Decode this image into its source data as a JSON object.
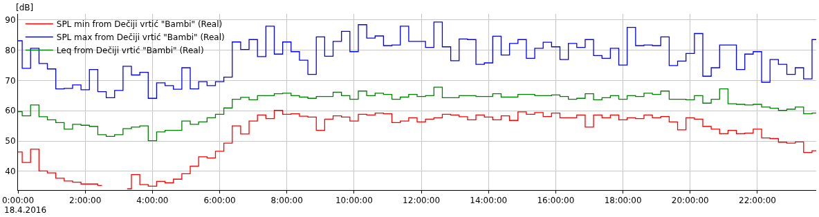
{
  "chart_data": {
    "type": "step",
    "ylabel": "[dB]",
    "annotations": [
      "18.4.2016"
    ],
    "x": [
      0,
      0.25,
      0.5,
      0.75,
      1,
      1.25,
      1.5,
      1.75,
      2,
      2.25,
      2.5,
      2.75,
      3,
      3.25,
      3.5,
      3.75,
      4,
      4.25,
      4.5,
      4.75,
      5,
      5.25,
      5.5,
      5.75,
      6,
      6.25,
      6.5,
      6.75,
      7,
      7.25,
      7.5,
      7.75,
      8,
      8.25,
      8.5,
      8.75,
      9,
      9.25,
      9.5,
      9.75,
      10,
      10.25,
      10.5,
      10.75,
      11,
      11.25,
      11.5,
      11.75,
      12,
      12.25,
      12.5,
      12.75,
      13,
      13.25,
      13.5,
      13.75,
      14,
      14.25,
      14.5,
      14.75,
      15,
      15.25,
      15.5,
      15.75,
      16,
      16.25,
      16.5,
      16.75,
      17,
      17.25,
      17.5,
      17.75,
      18,
      18.25,
      18.5,
      18.75,
      19,
      19.25,
      19.5,
      19.75,
      20,
      20.25,
      20.5,
      20.75,
      21,
      21.25,
      21.5,
      21.75,
      22,
      22.25,
      22.5,
      22.75,
      23,
      23.25,
      23.5,
      23.75
    ],
    "series": [
      {
        "name": "SPL min from Dečiji vrtić \"Bambi\" (Real)",
        "color": "#ff0000",
        "values": [
          46.4,
          42.9,
          47.3,
          40.1,
          39.5,
          37.7,
          36.8,
          36.4,
          35.8,
          35.8,
          35.3,
          null,
          null,
          34.2,
          38.9,
          35.6,
          35.1,
          36.7,
          36.2,
          37.4,
          39.2,
          41.7,
          44.8,
          44.4,
          46.6,
          49.3,
          55.0,
          52.3,
          56.6,
          58.6,
          57.4,
          60.1,
          58.8,
          59.0,
          58.2,
          57.9,
          53.5,
          57.2,
          58.3,
          57.9,
          56.6,
          58.8,
          58.6,
          59.2,
          59.0,
          56.1,
          56.6,
          57.7,
          56.3,
          57.2,
          57.7,
          58.8,
          58.6,
          58.0,
          57.0,
          58.6,
          57.9,
          57.0,
          58.3,
          56.8,
          59.6,
          58.8,
          59.4,
          58.1,
          59.2,
          57.7,
          57.7,
          58.6,
          54.6,
          58.6,
          57.7,
          58.6,
          57.0,
          57.7,
          57.4,
          58.6,
          57.7,
          58.1,
          56.3,
          53.7,
          57.7,
          57.2,
          54.8,
          53.9,
          52.4,
          53.5,
          52.4,
          52.6,
          53.9,
          51.0,
          50.8,
          49.6,
          49.3,
          49.7,
          46.2,
          46.8
        ]
      },
      {
        "name": "SPL max from Dečiji vrtić \"Bambi\" (Real)",
        "color": "#0000ff",
        "values": [
          83.1,
          74.0,
          80.6,
          75.6,
          73.8,
          67.2,
          67.4,
          68.5,
          66.9,
          73.6,
          66.3,
          64.3,
          66.7,
          74.7,
          71.8,
          72.7,
          64.1,
          69.2,
          68.3,
          67.1,
          74.2,
          67.2,
          69.6,
          68.3,
          69.6,
          71.1,
          82.7,
          80.2,
          83.5,
          77.9,
          87.9,
          78.7,
          82.7,
          79.5,
          76.7,
          72.0,
          84.4,
          78.0,
          82.9,
          86.2,
          79.5,
          88.4,
          84.0,
          84.7,
          81.5,
          81.7,
          87.9,
          82.9,
          82.9,
          80.9,
          89.3,
          81.1,
          76.5,
          83.7,
          83.5,
          75.3,
          75.8,
          84.6,
          78.4,
          82.2,
          83.5,
          77.3,
          80.6,
          82.6,
          81.1,
          76.9,
          82.2,
          80.9,
          83.5,
          78.2,
          77.3,
          80.6,
          75.1,
          87.5,
          81.5,
          81.7,
          81.5,
          84.4,
          74.9,
          76.4,
          78.9,
          85.5,
          71.4,
          74.2,
          81.7,
          81.7,
          73.6,
          78.7,
          79.5,
          69.4,
          76.9,
          75.3,
          72.0,
          74.2,
          70.5,
          83.5
        ]
      },
      {
        "name": "Leq from Dečiji vrtić \"Bambi\" (Real)",
        "color": "#008000",
        "values": [
          59.7,
          58.3,
          61.9,
          58.0,
          57.0,
          56.1,
          53.9,
          55.5,
          55.2,
          54.8,
          52.1,
          51.5,
          52.1,
          54.1,
          54.6,
          55.0,
          50.1,
          53.0,
          53.5,
          53.5,
          56.6,
          55.5,
          56.3,
          57.7,
          58.8,
          60.9,
          63.8,
          64.4,
          63.6,
          65.0,
          65.0,
          65.6,
          65.8,
          65.0,
          64.5,
          64.1,
          64.7,
          64.7,
          66.1,
          65.0,
          63.8,
          66.5,
          65.0,
          65.8,
          65.4,
          63.8,
          64.5,
          65.4,
          64.7,
          65.0,
          67.8,
          64.3,
          64.3,
          65.0,
          65.0,
          64.7,
          64.7,
          65.6,
          64.5,
          64.5,
          65.4,
          65.4,
          65.0,
          65.0,
          65.2,
          64.7,
          63.8,
          64.1,
          65.6,
          63.6,
          64.3,
          65.0,
          63.8,
          65.0,
          64.7,
          65.8,
          65.4,
          66.5,
          63.8,
          63.8,
          63.6,
          65.0,
          62.5,
          63.8,
          67.2,
          62.3,
          62.1,
          61.9,
          62.1,
          61.2,
          60.8,
          60.1,
          60.5,
          61.2,
          59.0,
          59.2
        ]
      }
    ],
    "xlim": [
      0,
      23.75
    ],
    "xticks": [
      {
        "value": 0,
        "label": "0:00:00"
      },
      {
        "value": 2,
        "label": "2:00:00"
      },
      {
        "value": 4,
        "label": "4:00:00"
      },
      {
        "value": 6,
        "label": "6:00:00"
      },
      {
        "value": 8,
        "label": "8:00:00"
      },
      {
        "value": 10,
        "label": "10:00:00"
      },
      {
        "value": 12,
        "label": "12:00:00"
      },
      {
        "value": 14,
        "label": "14:00:00"
      },
      {
        "value": 16,
        "label": "16:00:00"
      },
      {
        "value": 18,
        "label": "18:00:00"
      },
      {
        "value": 20,
        "label": "20:00:00"
      },
      {
        "value": 22,
        "label": "22:00:00"
      }
    ],
    "ylim": [
      33.8,
      92
    ],
    "yticks": [
      40,
      50,
      60,
      70,
      80,
      90
    ],
    "grid": true,
    "legend": "top left",
    "marker": "none",
    "line_style": "solid"
  }
}
